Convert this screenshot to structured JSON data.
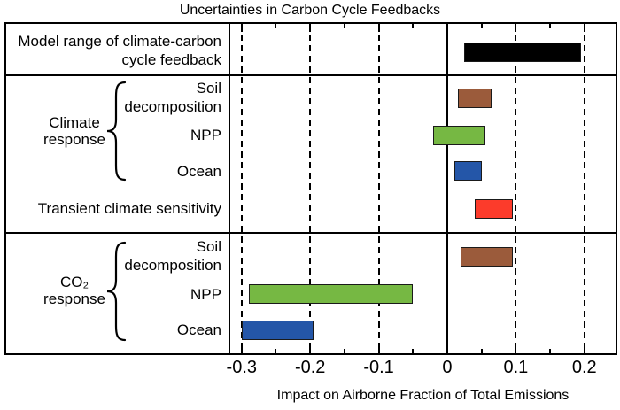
{
  "chart_data": {
    "type": "bar",
    "orientation": "horizontal",
    "title": "Uncertainties in Carbon Cycle Feedbacks",
    "xlabel": "Impact on Airborne Fraction of Total Emissions",
    "xlim": [
      -0.3165,
      0.2455
    ],
    "x_major_ticks": [
      -0.3,
      -0.2,
      -0.1,
      0,
      0.1,
      0.2
    ],
    "x_tick_labels": [
      "-0.3",
      "-0.2",
      "-0.1",
      "0",
      "0.1",
      "0.2"
    ],
    "x_minor_ticks": [
      -0.25,
      -0.15,
      -0.05,
      0.05,
      0.15
    ],
    "gridlines": {
      "dashed": [
        -0.3,
        -0.2,
        -0.1,
        0.1,
        0.2
      ],
      "solid": [
        0
      ]
    },
    "bar_outline_color": "#1a1a1a",
    "bars": [
      {
        "name": "model-range-feedback",
        "label": "Model range of climate-carbon cycle feedback",
        "group": null,
        "range": [
          0.025,
          0.195
        ],
        "color": "#000000"
      },
      {
        "name": "climate-soil-decomposition",
        "label": "Soil decomposition",
        "group": "Climate response",
        "range": [
          0.015,
          0.065
        ],
        "color": "#9B5B3B"
      },
      {
        "name": "climate-npp",
        "label": "NPP",
        "group": "Climate response",
        "range": [
          -0.02,
          0.055
        ],
        "color": "#76B843"
      },
      {
        "name": "climate-ocean",
        "label": "Ocean",
        "group": "Climate response",
        "range": [
          0.01,
          0.05
        ],
        "color": "#2456A8"
      },
      {
        "name": "transient-climate-sensitivity",
        "label": "Transient climate sensitivity",
        "group": null,
        "range": [
          0.04,
          0.095
        ],
        "color": "#FC3B2B"
      },
      {
        "name": "co2-soil-decomposition",
        "label": "Soil decomposition",
        "group": "CO₂ response",
        "range": [
          0.02,
          0.095
        ],
        "color": "#9B5B3B"
      },
      {
        "name": "co2-npp",
        "label": "NPP",
        "group": "CO₂ response",
        "range": [
          -0.29,
          -0.05
        ],
        "color": "#76B843"
      },
      {
        "name": "co2-ocean",
        "label": "Ocean",
        "group": "CO₂ response",
        "range": [
          -0.3,
          -0.195
        ],
        "color": "#2456A8"
      }
    ]
  },
  "left_pane": {
    "row_labels": [
      {
        "name": "model-range-label",
        "lines": [
          "Model range of climate-carbon",
          "cycle feedback"
        ]
      },
      {
        "name": "climate-soil-label",
        "lines": [
          "Soil",
          "decomposition"
        ]
      },
      {
        "name": "climate-npp-label",
        "lines": [
          "NPP"
        ]
      },
      {
        "name": "climate-ocean-label",
        "lines": [
          "Ocean"
        ]
      },
      {
        "name": "transient-label",
        "lines": [
          "Transient climate sensitivity"
        ]
      },
      {
        "name": "co2-soil-label",
        "lines": [
          "Soil",
          "decomposition"
        ]
      },
      {
        "name": "co2-npp-label",
        "lines": [
          "NPP"
        ]
      },
      {
        "name": "co2-ocean-label",
        "lines": [
          "Ocean"
        ]
      }
    ],
    "group_labels": [
      {
        "name": "climate-response-label",
        "lines": [
          "Climate",
          "response"
        ]
      },
      {
        "name": "co2-response-label",
        "lines": [
          "CO₂",
          "response"
        ]
      }
    ]
  }
}
